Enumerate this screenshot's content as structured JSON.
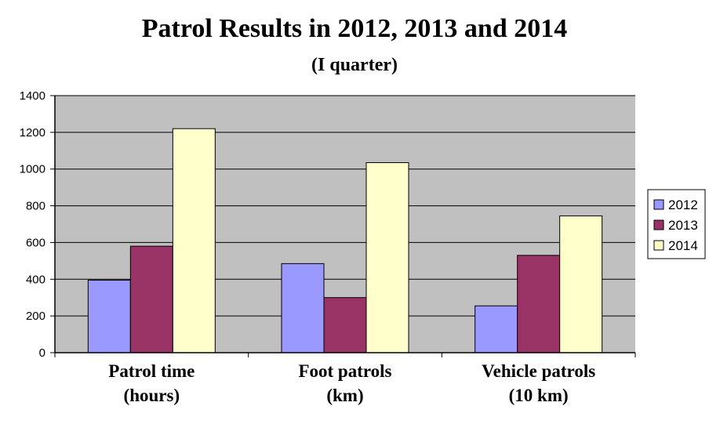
{
  "chart_data": {
    "type": "bar",
    "title": "Patrol Results in 2012, 2013 and 2014",
    "subtitle": "(I quarter)",
    "categories": [
      [
        "Patrol time",
        "(hours)"
      ],
      [
        "Foot patrols",
        "(km)"
      ],
      [
        "Vehicle patrols",
        "(10 km)"
      ]
    ],
    "series": [
      {
        "name": "2012",
        "color": "#9999ff",
        "values": [
          395,
          485,
          255
        ]
      },
      {
        "name": "2013",
        "color": "#993366",
        "values": [
          580,
          300,
          530
        ]
      },
      {
        "name": "2014",
        "color": "#ffffcc",
        "values": [
          1220,
          1035,
          745
        ]
      }
    ],
    "ylim": [
      0,
      1400
    ],
    "yticks": [
      "0",
      "200",
      "400",
      "600",
      "800",
      "1000",
      "1200",
      "1400"
    ],
    "grid": true,
    "plot_background": "#c0c0c0",
    "legend_position": "right"
  }
}
